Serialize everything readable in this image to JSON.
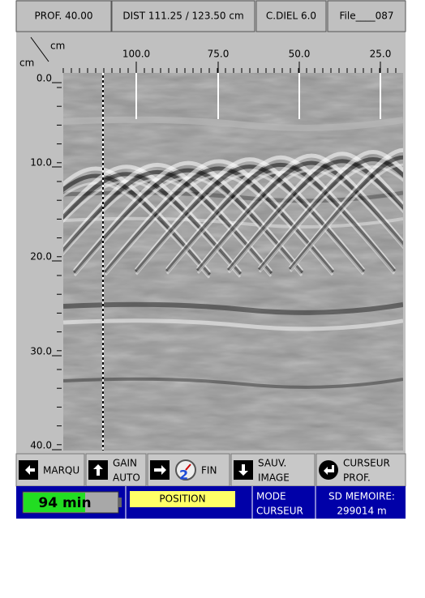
{
  "header": {
    "depth": "PROF. 40.00",
    "distance": "DIST 111.25 / 123.50 cm",
    "dielectric": "C.DIEL 6.0",
    "file": "File____087"
  },
  "plot": {
    "corner_unit_top": "cm",
    "corner_unit_left": "cm",
    "distance_labels": [
      "100.0",
      "75.0",
      "50.0",
      "25.0"
    ],
    "depth_labels": [
      "0.0",
      "10.0",
      "20.0",
      "30.0",
      "40.0"
    ]
  },
  "toolbar": [
    {
      "lines": [
        "MARQU"
      ]
    },
    {
      "lines": [
        "GAIN",
        "AUTO"
      ]
    },
    {
      "lines": [
        "FIN"
      ],
      "icon_badge": "2"
    },
    {
      "lines": [
        "SAUV.",
        "IMAGE"
      ]
    },
    {
      "lines": [
        "CURSEUR",
        "PROF."
      ]
    }
  ],
  "status": {
    "battery": "94 min",
    "position": "POSITION",
    "mode": [
      "MODE",
      "CURSEUR"
    ],
    "memory": [
      "SD MEMOIRE:",
      "299014 m"
    ]
  }
}
